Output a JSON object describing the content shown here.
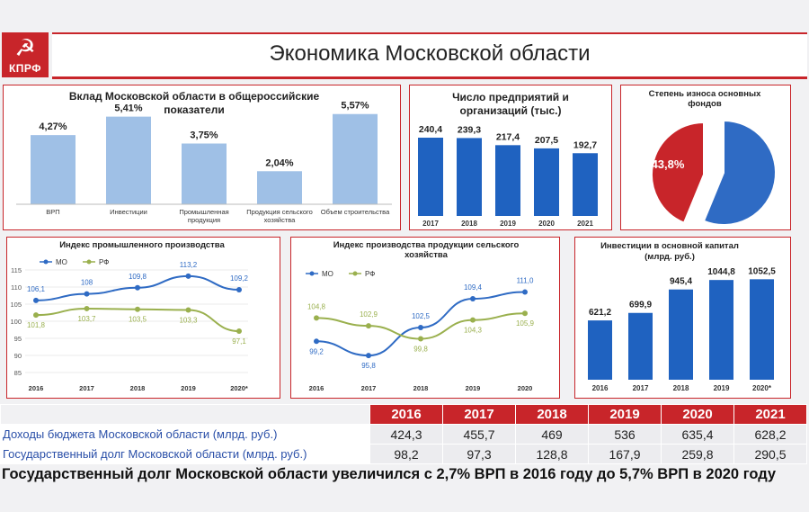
{
  "header": {
    "logo_symbol": "☭",
    "logo_text": "КПРФ",
    "title": "Экономика Московской области"
  },
  "colors": {
    "accent": "#c8252a",
    "mo_blue": "#2f6bc4",
    "rf_green": "#9ab04e",
    "bar_blue": "#1f62c0",
    "light_bar": "#9fc0e6"
  },
  "chart_data": [
    {
      "type": "bar",
      "title": "Вклад Московской области в общероссийские показатели",
      "categories": [
        "ВРП",
        "Инвестиции",
        "Промышленная продукция",
        "Продукция сельского хозяйства",
        "Объем строительства"
      ],
      "values": [
        4.27,
        5.41,
        3.75,
        2.04,
        5.57
      ],
      "labels": [
        "4,27%",
        "5,41%",
        "3,75%",
        "2,04%",
        "5,57%"
      ],
      "ylim": [
        0,
        6
      ]
    },
    {
      "type": "bar",
      "title": "Число предприятий и организаций (тыс.)",
      "categories": [
        "2017",
        "2018",
        "2019",
        "2020",
        "2021"
      ],
      "values": [
        240.4,
        239.3,
        217.4,
        207.5,
        192.7
      ],
      "labels": [
        "240,4",
        "239,3",
        "217,4",
        "207,5",
        "192,7"
      ],
      "ylim": [
        0,
        250
      ]
    },
    {
      "type": "pie",
      "title": "Степень износа основных фондов",
      "values": [
        56.2,
        43.8
      ],
      "labels": [
        "",
        "43,8%"
      ]
    },
    {
      "type": "line",
      "title": "Индекс промышленного производства",
      "categories": [
        "2016",
        "2017",
        "2018",
        "2019",
        "2020*"
      ],
      "yticks": [
        85,
        90,
        95,
        100,
        105,
        110,
        115
      ],
      "ylim": [
        85,
        115
      ],
      "series": [
        {
          "name": "МО",
          "values": [
            106.1,
            108,
            109.8,
            113.2,
            109.2
          ],
          "labels": [
            "106,1",
            "108",
            "109,8",
            "113,2",
            "109,2"
          ]
        },
        {
          "name": "РФ",
          "values": [
            101.8,
            103.7,
            103.5,
            103.3,
            97.1
          ],
          "labels": [
            "101,8",
            "103,7",
            "103,5",
            "103,3",
            "97,1"
          ]
        }
      ]
    },
    {
      "type": "line",
      "title": "Индекс производства продукции сельского хозяйства",
      "categories": [
        "2016",
        "2017",
        "2018",
        "2019",
        "2020"
      ],
      "ylim": [
        90,
        115
      ],
      "series": [
        {
          "name": "МО",
          "values": [
            99.2,
            95.8,
            102.5,
            109.4,
            111.0
          ],
          "labels": [
            "99,2",
            "95,8",
            "102,5",
            "109,4",
            "111,0"
          ]
        },
        {
          "name": "РФ",
          "values": [
            104.8,
            102.9,
            99.8,
            104.3,
            105.9
          ],
          "labels": [
            "104,8",
            "102,9",
            "99,8",
            "104,3",
            "105,9"
          ]
        }
      ]
    },
    {
      "type": "bar",
      "title": "Инвестиции в основной капитал (млрд. руб.)",
      "categories": [
        "2016",
        "2017",
        "2018",
        "2019",
        "2020*"
      ],
      "values": [
        621.2,
        699.9,
        945.4,
        1044.8,
        1052.5
      ],
      "labels": [
        "621,2",
        "699,9",
        "945,4",
        "1044,8",
        "1052,5"
      ],
      "ylim": [
        0,
        1150
      ]
    }
  ],
  "table": {
    "years": [
      "2016",
      "2017",
      "2018",
      "2019",
      "2020",
      "2021"
    ],
    "rows": [
      {
        "label": "Доходы бюджета Московской области (млрд. руб.)",
        "values": [
          "424,3",
          "455,7",
          "469",
          "536",
          "635,4",
          "628,2"
        ]
      },
      {
        "label": "Государственный долг Московской области (млрд. руб.)",
        "values": [
          "98,2",
          "97,3",
          "128,8",
          "167,9",
          "259,8",
          "290,5"
        ]
      }
    ]
  },
  "footnote": "Государственный долг Московской области увеличился с 2,7% ВРП в 2016 году до 5,7% ВРП в 2020 году"
}
